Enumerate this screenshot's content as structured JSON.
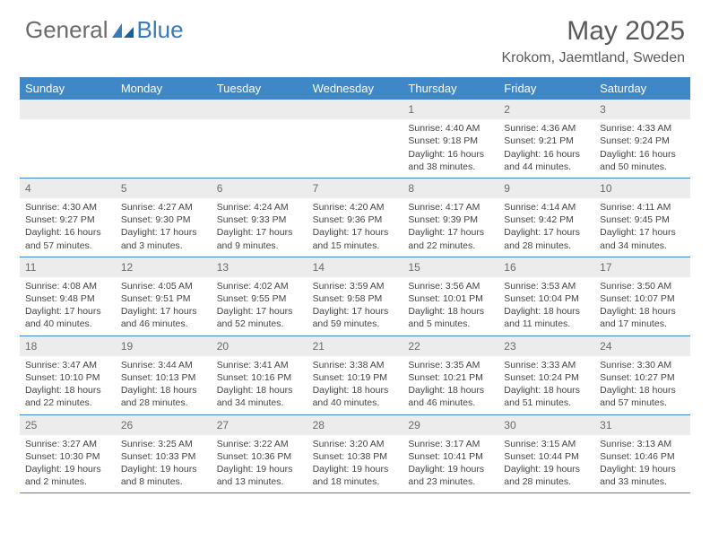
{
  "brand": {
    "part1": "General",
    "part2": "Blue"
  },
  "title": "May 2025",
  "location": "Krokom, Jaemtland, Sweden",
  "colors": {
    "header_bg": "#3f87c7",
    "header_text": "#ffffff",
    "daynum_bg": "#ececec",
    "border": "#3f87c7",
    "text": "#444444",
    "logo_gray": "#6b6b6b",
    "logo_blue": "#3a7ab8"
  },
  "weekdays": [
    "Sunday",
    "Monday",
    "Tuesday",
    "Wednesday",
    "Thursday",
    "Friday",
    "Saturday"
  ],
  "weeks": [
    [
      {
        "n": "",
        "sr": "",
        "ss": "",
        "dl": ""
      },
      {
        "n": "",
        "sr": "",
        "ss": "",
        "dl": ""
      },
      {
        "n": "",
        "sr": "",
        "ss": "",
        "dl": ""
      },
      {
        "n": "",
        "sr": "",
        "ss": "",
        "dl": ""
      },
      {
        "n": "1",
        "sr": "Sunrise: 4:40 AM",
        "ss": "Sunset: 9:18 PM",
        "dl": "Daylight: 16 hours and 38 minutes."
      },
      {
        "n": "2",
        "sr": "Sunrise: 4:36 AM",
        "ss": "Sunset: 9:21 PM",
        "dl": "Daylight: 16 hours and 44 minutes."
      },
      {
        "n": "3",
        "sr": "Sunrise: 4:33 AM",
        "ss": "Sunset: 9:24 PM",
        "dl": "Daylight: 16 hours and 50 minutes."
      }
    ],
    [
      {
        "n": "4",
        "sr": "Sunrise: 4:30 AM",
        "ss": "Sunset: 9:27 PM",
        "dl": "Daylight: 16 hours and 57 minutes."
      },
      {
        "n": "5",
        "sr": "Sunrise: 4:27 AM",
        "ss": "Sunset: 9:30 PM",
        "dl": "Daylight: 17 hours and 3 minutes."
      },
      {
        "n": "6",
        "sr": "Sunrise: 4:24 AM",
        "ss": "Sunset: 9:33 PM",
        "dl": "Daylight: 17 hours and 9 minutes."
      },
      {
        "n": "7",
        "sr": "Sunrise: 4:20 AM",
        "ss": "Sunset: 9:36 PM",
        "dl": "Daylight: 17 hours and 15 minutes."
      },
      {
        "n": "8",
        "sr": "Sunrise: 4:17 AM",
        "ss": "Sunset: 9:39 PM",
        "dl": "Daylight: 17 hours and 22 minutes."
      },
      {
        "n": "9",
        "sr": "Sunrise: 4:14 AM",
        "ss": "Sunset: 9:42 PM",
        "dl": "Daylight: 17 hours and 28 minutes."
      },
      {
        "n": "10",
        "sr": "Sunrise: 4:11 AM",
        "ss": "Sunset: 9:45 PM",
        "dl": "Daylight: 17 hours and 34 minutes."
      }
    ],
    [
      {
        "n": "11",
        "sr": "Sunrise: 4:08 AM",
        "ss": "Sunset: 9:48 PM",
        "dl": "Daylight: 17 hours and 40 minutes."
      },
      {
        "n": "12",
        "sr": "Sunrise: 4:05 AM",
        "ss": "Sunset: 9:51 PM",
        "dl": "Daylight: 17 hours and 46 minutes."
      },
      {
        "n": "13",
        "sr": "Sunrise: 4:02 AM",
        "ss": "Sunset: 9:55 PM",
        "dl": "Daylight: 17 hours and 52 minutes."
      },
      {
        "n": "14",
        "sr": "Sunrise: 3:59 AM",
        "ss": "Sunset: 9:58 PM",
        "dl": "Daylight: 17 hours and 59 minutes."
      },
      {
        "n": "15",
        "sr": "Sunrise: 3:56 AM",
        "ss": "Sunset: 10:01 PM",
        "dl": "Daylight: 18 hours and 5 minutes."
      },
      {
        "n": "16",
        "sr": "Sunrise: 3:53 AM",
        "ss": "Sunset: 10:04 PM",
        "dl": "Daylight: 18 hours and 11 minutes."
      },
      {
        "n": "17",
        "sr": "Sunrise: 3:50 AM",
        "ss": "Sunset: 10:07 PM",
        "dl": "Daylight: 18 hours and 17 minutes."
      }
    ],
    [
      {
        "n": "18",
        "sr": "Sunrise: 3:47 AM",
        "ss": "Sunset: 10:10 PM",
        "dl": "Daylight: 18 hours and 22 minutes."
      },
      {
        "n": "19",
        "sr": "Sunrise: 3:44 AM",
        "ss": "Sunset: 10:13 PM",
        "dl": "Daylight: 18 hours and 28 minutes."
      },
      {
        "n": "20",
        "sr": "Sunrise: 3:41 AM",
        "ss": "Sunset: 10:16 PM",
        "dl": "Daylight: 18 hours and 34 minutes."
      },
      {
        "n": "21",
        "sr": "Sunrise: 3:38 AM",
        "ss": "Sunset: 10:19 PM",
        "dl": "Daylight: 18 hours and 40 minutes."
      },
      {
        "n": "22",
        "sr": "Sunrise: 3:35 AM",
        "ss": "Sunset: 10:21 PM",
        "dl": "Daylight: 18 hours and 46 minutes."
      },
      {
        "n": "23",
        "sr": "Sunrise: 3:33 AM",
        "ss": "Sunset: 10:24 PM",
        "dl": "Daylight: 18 hours and 51 minutes."
      },
      {
        "n": "24",
        "sr": "Sunrise: 3:30 AM",
        "ss": "Sunset: 10:27 PM",
        "dl": "Daylight: 18 hours and 57 minutes."
      }
    ],
    [
      {
        "n": "25",
        "sr": "Sunrise: 3:27 AM",
        "ss": "Sunset: 10:30 PM",
        "dl": "Daylight: 19 hours and 2 minutes."
      },
      {
        "n": "26",
        "sr": "Sunrise: 3:25 AM",
        "ss": "Sunset: 10:33 PM",
        "dl": "Daylight: 19 hours and 8 minutes."
      },
      {
        "n": "27",
        "sr": "Sunrise: 3:22 AM",
        "ss": "Sunset: 10:36 PM",
        "dl": "Daylight: 19 hours and 13 minutes."
      },
      {
        "n": "28",
        "sr": "Sunrise: 3:20 AM",
        "ss": "Sunset: 10:38 PM",
        "dl": "Daylight: 19 hours and 18 minutes."
      },
      {
        "n": "29",
        "sr": "Sunrise: 3:17 AM",
        "ss": "Sunset: 10:41 PM",
        "dl": "Daylight: 19 hours and 23 minutes."
      },
      {
        "n": "30",
        "sr": "Sunrise: 3:15 AM",
        "ss": "Sunset: 10:44 PM",
        "dl": "Daylight: 19 hours and 28 minutes."
      },
      {
        "n": "31",
        "sr": "Sunrise: 3:13 AM",
        "ss": "Sunset: 10:46 PM",
        "dl": "Daylight: 19 hours and 33 minutes."
      }
    ]
  ]
}
